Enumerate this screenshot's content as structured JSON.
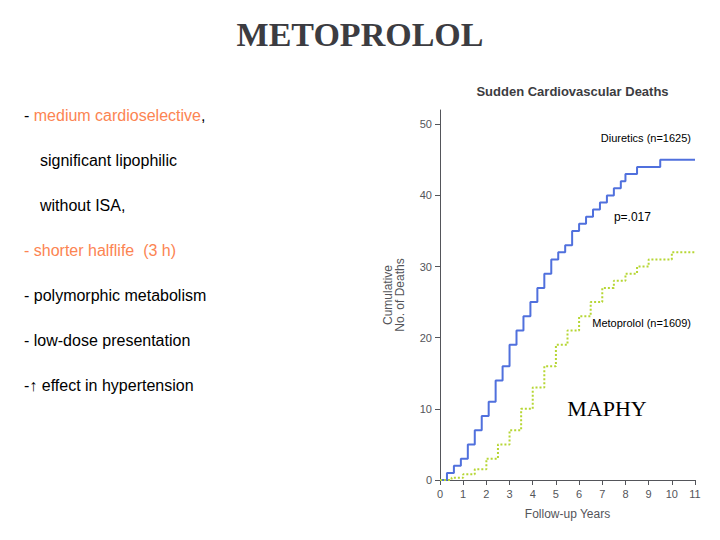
{
  "chart_data": {
    "type": "step",
    "title": "METOPROLOL",
    "subtitle": "Sudden Cardiovascular Deaths",
    "xlabel": "Follow-up Years",
    "ylabel": "Cumulative\nNo. of Deaths",
    "xlim": [
      0,
      11
    ],
    "xticks": [
      0,
      1,
      2,
      3,
      4,
      5,
      6,
      7,
      8,
      9,
      10,
      11
    ],
    "ylim": [
      0,
      52
    ],
    "yticks": [
      0,
      10,
      20,
      30,
      40,
      50
    ],
    "grid": false,
    "series": [
      {
        "name": "Diuretics (n=1625)",
        "line_style": "solid",
        "x": [
          0,
          0.3,
          0.6,
          0.9,
          1.2,
          1.5,
          1.8,
          2.1,
          2.4,
          2.7,
          3.0,
          3.3,
          3.6,
          3.9,
          4.2,
          4.5,
          4.8,
          5.1,
          5.4,
          5.7,
          6.0,
          6.3,
          6.6,
          6.9,
          7.2,
          7.5,
          7.8,
          8.0,
          8.5,
          9.0,
          9.5,
          10.0,
          10.5,
          11.0
        ],
        "values": [
          0,
          1,
          2,
          3,
          5,
          7,
          9,
          11,
          14,
          16,
          19,
          21,
          23,
          25,
          27,
          29,
          31,
          32,
          33,
          35,
          36,
          37,
          38,
          39,
          40,
          41,
          42,
          43,
          44,
          44,
          45,
          45,
          45,
          45
        ]
      },
      {
        "name": "Metoprolol (n=1609)",
        "line_style": "dotted",
        "x": [
          0,
          0.5,
          1.0,
          1.5,
          2.0,
          2.5,
          3.0,
          3.5,
          4.0,
          4.5,
          5.0,
          5.5,
          6.0,
          6.5,
          7.0,
          7.5,
          8.0,
          8.5,
          9.0,
          9.5,
          10.0,
          10.5,
          11.0
        ],
        "values": [
          0,
          0.3,
          0.8,
          1.5,
          3,
          5,
          7,
          10,
          13,
          16,
          19,
          21,
          23,
          25,
          27,
          28,
          29,
          30,
          31,
          31,
          32,
          32,
          32
        ]
      }
    ],
    "annotations": [
      {
        "text": "p=.017"
      },
      {
        "text": "MAPHY"
      },
      {
        "parts": [
          {
            "text": "- "
          },
          {
            "text": "medium cardioselective",
            "color": "#FC8452"
          },
          {
            "text": ","
          }
        ]
      },
      {
        "parts": [
          {
            "text": "significant lipophilic"
          }
        ]
      },
      {
        "parts": [
          {
            "text": "without ISA,"
          }
        ]
      },
      {
        "parts": [
          {
            "text": "- shorter halflife  (3 h)",
            "color": "#FC8452"
          }
        ]
      },
      {
        "parts": [
          {
            "text": "- polymorphic metabolism"
          }
        ]
      },
      {
        "parts": [
          {
            "text": "- low-dose presentation"
          }
        ]
      },
      {
        "parts": [
          {
            "text": "-↑ effect in hypertension"
          }
        ]
      }
    ]
  }
}
